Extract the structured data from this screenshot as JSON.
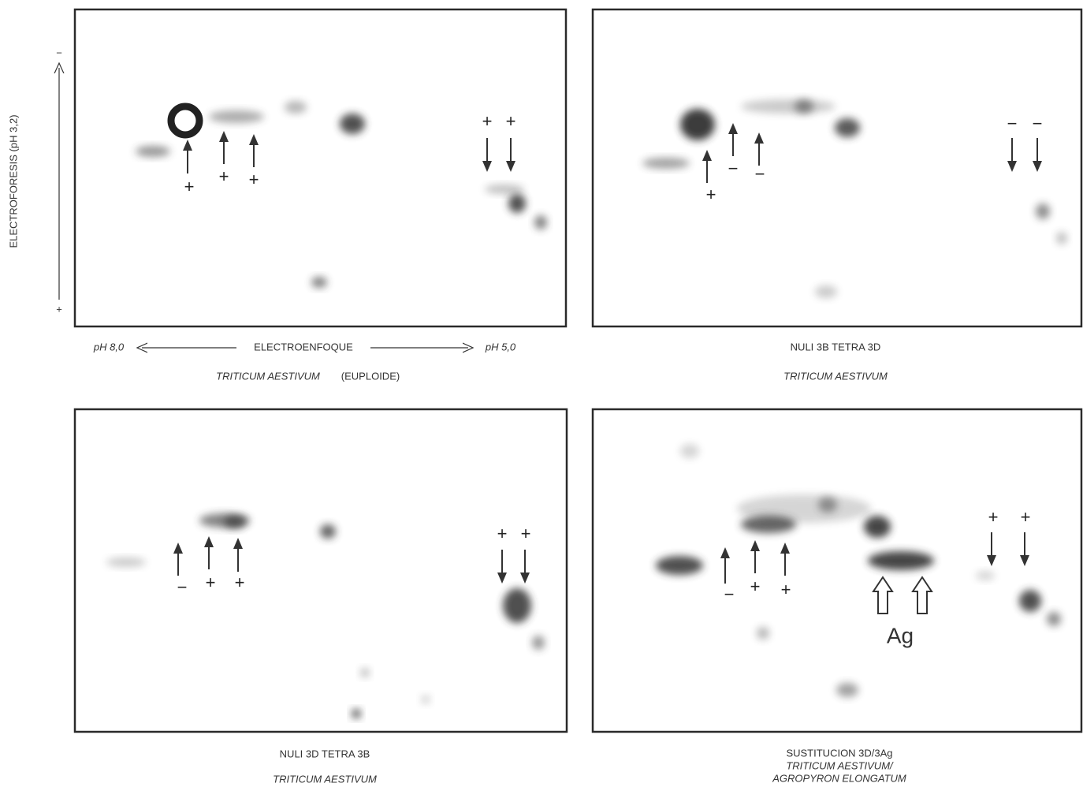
{
  "axis": {
    "y_label": "ELECTROFORESIS (pH 3,2)",
    "y_top": "−",
    "y_bottom": "+",
    "x_left": "pH 8,0",
    "x_center": "ELECTROENFOQUE",
    "x_right": "pH 5,0"
  },
  "panels": [
    {
      "species": "TRITICUM AESTIVUM",
      "note": "(EUPLOIDE)",
      "signs": [
        "+",
        "+",
        "+",
        "+",
        "+"
      ]
    },
    {
      "title": "NULI 3B TETRA 3D",
      "species": "TRITICUM AESTIVUM",
      "signs": [
        "+",
        "−",
        "−",
        "−",
        "−"
      ]
    },
    {
      "title": "NULI 3D TETRA 3B",
      "species": "TRITICUM AESTIVUM",
      "signs": [
        "−",
        "+",
        "+",
        "+",
        "+"
      ]
    },
    {
      "title": "SUSTITUCION 3D/3Ag",
      "species": "TRITICUM AESTIVUM/",
      "species_2": "AGROPYRON ELONGATUM",
      "marker": "Ag",
      "signs": [
        "−",
        "+",
        "+",
        "+",
        "+"
      ]
    }
  ]
}
